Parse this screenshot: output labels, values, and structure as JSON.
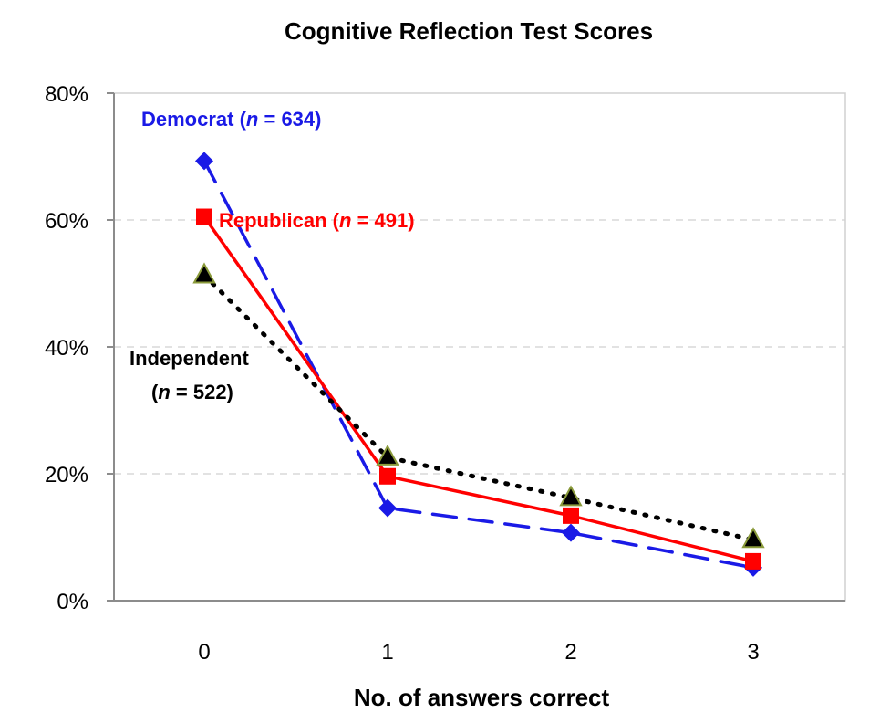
{
  "chart_data": {
    "type": "line",
    "title": "Cognitive Reflection Test Scores",
    "xlabel": "No. of answers correct",
    "ylabel": "",
    "categories": [
      "0",
      "1",
      "2",
      "3"
    ],
    "yticks": [
      "0%",
      "20%",
      "40%",
      "60%",
      "80%"
    ],
    "ylim": [
      0,
      80
    ],
    "y_unit": "%",
    "grid": true,
    "series": [
      {
        "name": "Democrat (n = 634)",
        "label_parts": [
          "Democrat (",
          "n",
          " = 634)"
        ],
        "values": [
          69.3,
          14.6,
          10.7,
          5.2
        ],
        "color": "#1a1ae6",
        "marker": "diamond",
        "line_style": "dashed"
      },
      {
        "name": "Republican (n = 491)",
        "label_parts": [
          "Republican (",
          "n",
          " = 491)"
        ],
        "values": [
          60.5,
          19.6,
          13.4,
          6.2
        ],
        "color": "#ff0000",
        "marker": "square",
        "line_style": "solid"
      },
      {
        "name": "Independent (n = 522)",
        "label_parts": [
          "Independent",
          "(",
          "n",
          " = 522)"
        ],
        "values": [
          51.3,
          22.6,
          16.2,
          9.6
        ],
        "color": "#000000",
        "marker": "triangle",
        "marker_edge": "#8a9a3a",
        "line_style": "dotted"
      }
    ]
  }
}
